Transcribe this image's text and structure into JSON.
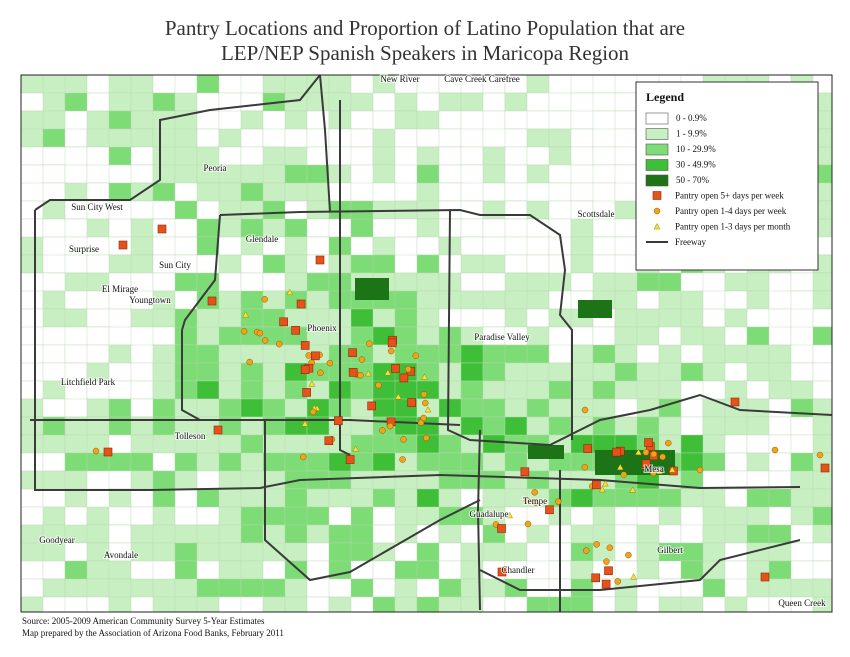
{
  "title": [
    "Pantry Locations and Proportion of Latino Population that are",
    "LEP/NEP Spanish Speakers in Maricopa Region"
  ],
  "places": [
    "New River",
    "Cave Creek Carefree",
    "Peoria",
    "Sun City West",
    "Scottsdale",
    "Glendale",
    "Surprise",
    "Sun City",
    "El Mirage",
    "Youngtown",
    "Phoenix",
    "Paradise Valley",
    "Litchfield Park",
    "Tolleson",
    "Mesa",
    "Tempe",
    "Guadalupe",
    "Goodyear",
    "Gilbert",
    "Avondale",
    "Chandler",
    "Queen Creek"
  ],
  "legend": {
    "title": "Legend",
    "items": [
      "0 - 0.9%",
      "1 - 9.9%",
      "10 - 29.9%",
      "30 - 49.9%",
      "50 - 70%",
      "Pantry open 5+ days per week",
      "Pantry open 1-4 days per week",
      "Pantry open 1-3 days per month",
      "Freeway"
    ]
  },
  "source": [
    "Source: 2005-2009 American Community Survey 5-Year Estimates",
    "Map prepared by the Association of Arizona Food Banks, February 2011"
  ]
}
